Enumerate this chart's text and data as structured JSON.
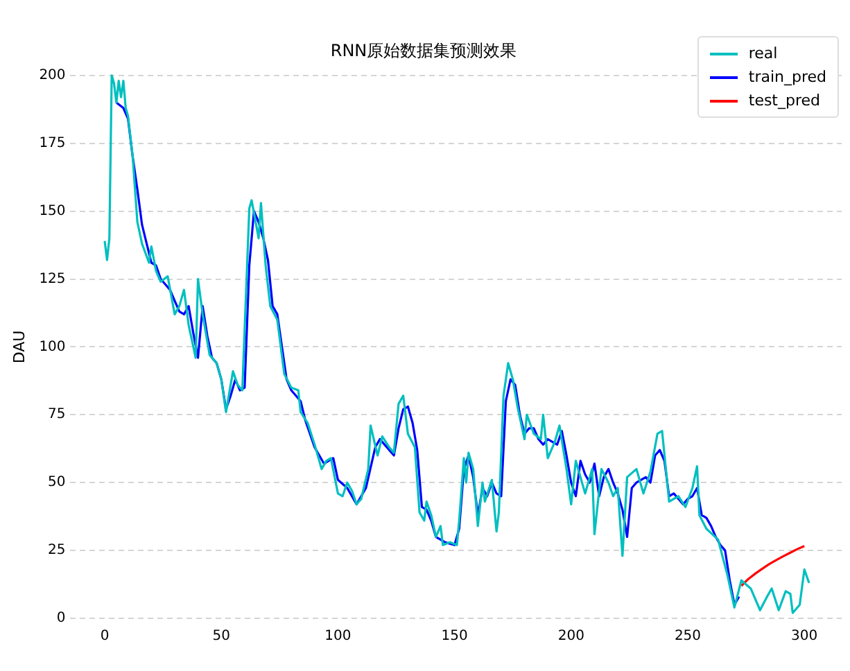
{
  "chart_data": {
    "type": "line",
    "title": "RNN原始数据集预测效果",
    "ylabel": "DAU",
    "xlim": [
      -15,
      316
    ],
    "ylim": [
      0,
      200
    ],
    "xticks": [
      0,
      50,
      100,
      150,
      200,
      250,
      300
    ],
    "yticks": [
      0,
      25,
      50,
      75,
      100,
      125,
      150,
      175,
      200
    ],
    "grid": "y",
    "legend": "top right",
    "line_style": "solid",
    "marker": "none",
    "series": [
      {
        "name": "real",
        "color": "#00bfbf",
        "x": [
          0,
          1,
          2,
          3,
          4,
          5,
          6,
          7,
          8,
          9,
          10,
          12,
          14,
          16,
          19,
          20,
          22,
          24,
          27,
          30,
          32,
          34,
          36,
          39,
          40,
          42,
          45,
          48,
          50,
          52,
          55,
          57,
          59,
          62,
          63,
          66,
          67,
          69,
          71,
          74,
          77,
          80,
          83,
          84,
          87,
          90,
          93,
          95,
          97,
          100,
          102,
          104,
          106,
          108,
          110,
          113,
          114,
          117,
          119,
          122,
          124,
          126,
          128,
          130,
          133,
          135,
          137,
          138,
          140,
          142,
          144,
          145,
          148,
          151,
          152,
          154,
          155,
          156,
          158,
          160,
          162,
          163,
          166,
          168,
          169,
          171,
          173,
          175,
          177,
          180,
          181,
          184,
          187,
          188,
          190,
          193,
          195,
          198,
          200,
          202,
          206,
          209,
          210,
          213,
          216,
          218,
          220,
          222,
          224,
          228,
          231,
          234,
          237,
          239,
          242,
          246,
          249,
          252,
          254,
          255,
          258,
          263,
          267,
          270,
          273,
          277,
          281,
          284,
          286,
          289,
          292,
          294,
          295,
          298,
          300,
          302
        ],
        "values": [
          139,
          132,
          140,
          200,
          197,
          190,
          198,
          192,
          198,
          188,
          185,
          170,
          146,
          138,
          131,
          137,
          128,
          124,
          126,
          112,
          115,
          121,
          108,
          96,
          125,
          112,
          97,
          94,
          88,
          76,
          91,
          86,
          84,
          151,
          154,
          140,
          153,
          130,
          115,
          110,
          90,
          85,
          84,
          76,
          72,
          64,
          55,
          58,
          59,
          46,
          45,
          50,
          47,
          42,
          44,
          55,
          71,
          60,
          67,
          63,
          61,
          79,
          82,
          68,
          63,
          39,
          36,
          43,
          38,
          30,
          34,
          27,
          28,
          27,
          36,
          59,
          50,
          61,
          55,
          34,
          50,
          43,
          51,
          32,
          39,
          82,
          94,
          88,
          78,
          66,
          75,
          68,
          66,
          75,
          59,
          65,
          71,
          55,
          42,
          58,
          46,
          55,
          31,
          55,
          50,
          45,
          48,
          23,
          52,
          55,
          46,
          54,
          68,
          69,
          43,
          45,
          41,
          48,
          56,
          38,
          33,
          29,
          16,
          4,
          14,
          11,
          3,
          8,
          11,
          3,
          10,
          9,
          2,
          5,
          18,
          13
        ]
      },
      {
        "name": "train_pred",
        "color": "#0000ff",
        "x": [
          5,
          8,
          10,
          12,
          14,
          16,
          18,
          20,
          22,
          24,
          26,
          28,
          30,
          32,
          34,
          36,
          38,
          40,
          42,
          44,
          46,
          48,
          50,
          52,
          54,
          56,
          58,
          60,
          62,
          64,
          66,
          68,
          70,
          72,
          74,
          76,
          78,
          80,
          84,
          86,
          90,
          94,
          98,
          100,
          104,
          108,
          112,
          116,
          118,
          120,
          124,
          126,
          128,
          130,
          132,
          134,
          136,
          138,
          140,
          142,
          144,
          146,
          150,
          152,
          154,
          156,
          158,
          160,
          162,
          164,
          166,
          168,
          170,
          172,
          174,
          176,
          178,
          180,
          182,
          184,
          186,
          188,
          190,
          194,
          196,
          198,
          200,
          202,
          204,
          206,
          208,
          210,
          212,
          214,
          216,
          218,
          220,
          222,
          224,
          226,
          228,
          232,
          234,
          236,
          238,
          240,
          242,
          244,
          248,
          250,
          252,
          254,
          256,
          258,
          260,
          262,
          264,
          266,
          268,
          270,
          272
        ],
        "values": [
          190,
          188,
          184,
          170,
          158,
          145,
          138,
          131,
          130,
          125,
          123,
          121,
          117,
          113,
          112,
          115,
          105,
          96,
          115,
          104,
          96,
          94,
          88,
          77,
          82,
          88,
          84,
          85,
          130,
          150,
          146,
          140,
          132,
          115,
          112,
          100,
          88,
          84,
          80,
          73,
          63,
          57,
          59,
          51,
          48,
          42,
          48,
          63,
          66,
          64,
          60,
          70,
          77,
          78,
          72,
          62,
          41,
          40,
          36,
          30,
          29,
          28,
          27,
          33,
          55,
          60,
          52,
          38,
          48,
          45,
          50,
          46,
          45,
          80,
          88,
          86,
          75,
          68,
          70,
          70,
          66,
          64,
          66,
          64,
          69,
          60,
          50,
          45,
          58,
          53,
          50,
          57,
          45,
          52,
          55,
          50,
          46,
          40,
          30,
          48,
          50,
          52,
          50,
          60,
          62,
          58,
          45,
          46,
          42,
          44,
          45,
          48,
          38,
          37,
          34,
          30,
          27,
          25,
          14,
          5,
          8
        ]
      },
      {
        "name": "test_pred",
        "color": "#ff0000",
        "x": [
          273,
          276,
          279,
          282,
          285,
          288,
          291,
          294,
          297,
          300
        ],
        "values": [
          12,
          14.5,
          16.5,
          18.3,
          20,
          21.5,
          22.9,
          24.2,
          25.5,
          26.6
        ]
      }
    ]
  }
}
